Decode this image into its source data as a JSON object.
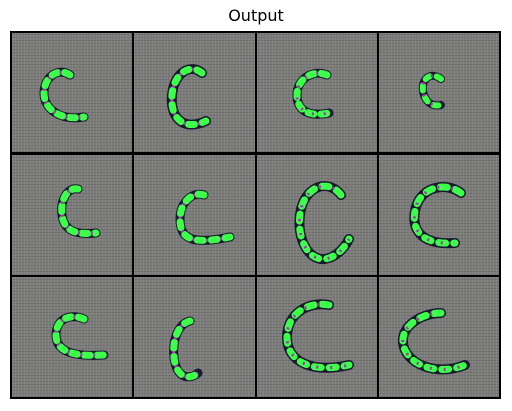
{
  "figure": {
    "title": "Output"
  },
  "grid": {
    "rows": 3,
    "cols": 4
  },
  "colors": {
    "background": "#ffffff",
    "cell_gray": "#7c7d7a",
    "grid_line": "#000000",
    "stroke_green": "#3cff4a",
    "stroke_dark": "#1b1830",
    "stroke_magenta": "#b22bbf"
  },
  "tiles": [
    {
      "glyph": "c-shape"
    },
    {
      "glyph": "c-shape"
    },
    {
      "glyph": "c-shape"
    },
    {
      "glyph": "c-shape"
    },
    {
      "glyph": "c-shape"
    },
    {
      "glyph": "c-shape"
    },
    {
      "glyph": "c-shape"
    },
    {
      "glyph": "c-shape"
    },
    {
      "glyph": "c-shape"
    },
    {
      "glyph": "c-shape"
    },
    {
      "glyph": "c-shape"
    },
    {
      "glyph": "c-shape"
    }
  ]
}
